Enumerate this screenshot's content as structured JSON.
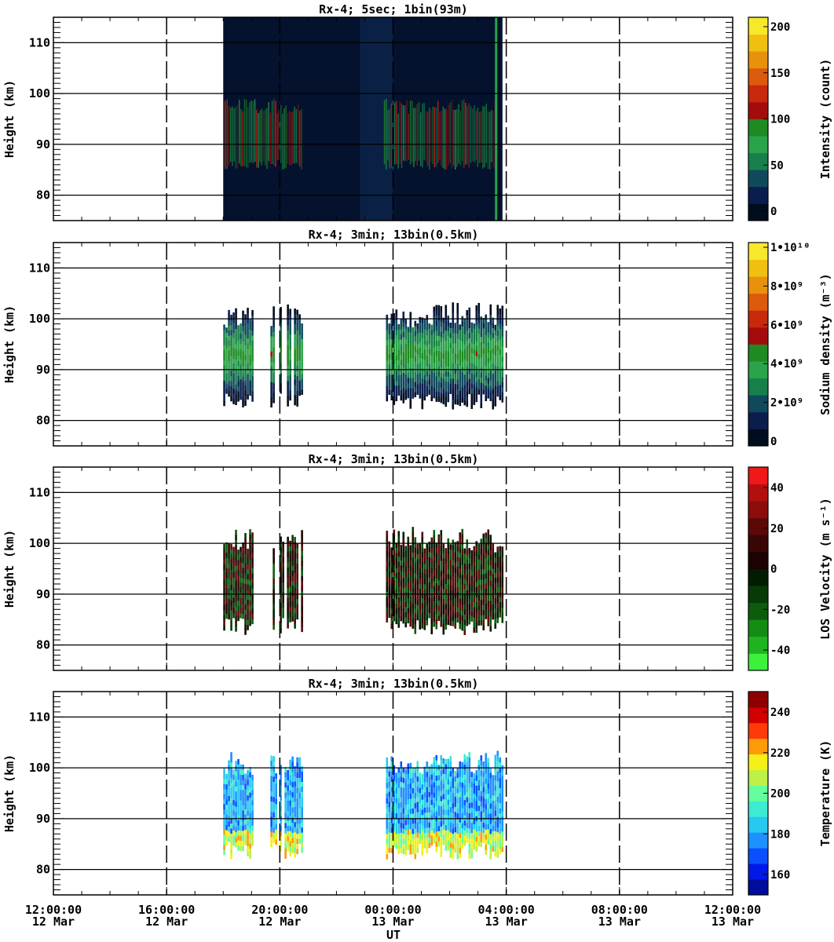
{
  "figure": {
    "panels": [
      {
        "title": "Rx-4;  5sec; 1bin(93m)",
        "ylabel": "Height (km)",
        "yticks": [
          "80",
          "90",
          "100",
          "110"
        ],
        "colorbar": {
          "label": "Intensity (count)",
          "ticks": [
            "0",
            "50",
            "100",
            "150",
            "200"
          ],
          "colors": [
            "#000d1f",
            "#0b1d4d",
            "#0e4a5c",
            "#17804a",
            "#2aa34a",
            "#1f8a22",
            "#a40c0c",
            "#c8280c",
            "#dc5a0c",
            "#e8920c",
            "#f0c010",
            "#f7e82a"
          ]
        },
        "data_blocks": [
          {
            "id": "intensity-main",
            "t0": "18:00",
            "t1": "02:45"
          },
          {
            "id": "intensity-fill",
            "t0": "02:45",
            "t1": "03:52"
          }
        ]
      },
      {
        "title": "Rx-4; 3min; 13bin(0.5km)",
        "ylabel": "Height (km)",
        "yticks": [
          "80",
          "90",
          "100",
          "110"
        ],
        "colorbar": {
          "label": "Sodium density (m⁻³)",
          "ticks": [
            "0",
            "2•10⁹",
            "4•10⁹",
            "6•10⁹",
            "8•10⁹",
            "1•10¹⁰"
          ],
          "colors": [
            "#000d1f",
            "#0b1d4d",
            "#0e4a5c",
            "#17804a",
            "#2aa34a",
            "#1f8a22",
            "#a40c0c",
            "#c8280c",
            "#dc5a0c",
            "#e8920c",
            "#f0c010",
            "#f7e82a"
          ]
        },
        "data_blocks": [
          {
            "id": "density-block-1",
            "t0": "18:00",
            "t1": "19:00"
          },
          {
            "id": "density-block-2",
            "t0": "19:40",
            "t1": "20:45"
          },
          {
            "id": "density-block-3",
            "t0": "23:45",
            "t1": "03:50"
          }
        ]
      },
      {
        "title": "Rx-4; 3min; 13bin(0.5km)",
        "ylabel": "Height (km)",
        "yticks": [
          "80",
          "90",
          "100",
          "110"
        ],
        "colorbar": {
          "label": "LOS Velocity (m s⁻¹)",
          "ticks": [
            "-40",
            "-20",
            "0",
            "20",
            "40"
          ],
          "colors": [
            "#3cf03c",
            "#1fb41f",
            "#148c14",
            "#0c5c0c",
            "#063a06",
            "#021c02",
            "#1c0202",
            "#3a0505",
            "#5c0808",
            "#8c0c0c",
            "#b40f0f",
            "#f01818"
          ]
        },
        "data_blocks": [
          {
            "id": "velocity-block-1",
            "t0": "18:00",
            "t1": "19:00"
          },
          {
            "id": "velocity-block-2",
            "t0": "19:40",
            "t1": "20:45"
          },
          {
            "id": "velocity-block-3",
            "t0": "23:45",
            "t1": "03:50"
          }
        ]
      },
      {
        "title": "Rx-4; 3min; 13bin(0.5km)",
        "ylabel": "Height (km)",
        "yticks": [
          "80",
          "90",
          "100",
          "110"
        ],
        "colorbar": {
          "label": "Temperature (K)",
          "ticks": [
            "160",
            "180",
            "200",
            "220",
            "240"
          ],
          "colors": [
            "#000c9c",
            "#0018e8",
            "#0a50ff",
            "#1e90ff",
            "#28c8f0",
            "#3cebd2",
            "#64ff9c",
            "#bef046",
            "#f5f016",
            "#ff9a0a",
            "#ff3a0a",
            "#d20000",
            "#8c0000"
          ]
        },
        "data_blocks": [
          {
            "id": "temperature-block-1",
            "t0": "18:00",
            "t1": "19:00"
          },
          {
            "id": "temperature-block-2",
            "t0": "19:40",
            "t1": "20:45"
          },
          {
            "id": "temperature-block-3",
            "t0": "23:45",
            "t1": "03:50"
          }
        ]
      }
    ],
    "xaxis": {
      "label": "UT",
      "ticks": [
        {
          "time": "12:00:00",
          "date": "12 Mar"
        },
        {
          "time": "16:00:00",
          "date": "12 Mar"
        },
        {
          "time": "20:00:00",
          "date": "12 Mar"
        },
        {
          "time": "00:00:00",
          "date": "13 Mar"
        },
        {
          "time": "04:00:00",
          "date": "13 Mar"
        },
        {
          "time": "08:00:00",
          "date": "13 Mar"
        },
        {
          "time": "12:00:00",
          "date": "13 Mar"
        }
      ]
    }
  },
  "chart_data": {
    "type": "heatmap",
    "title": "",
    "x_range": [
      "12 Mar 12:00:00",
      "13 Mar 12:00:00"
    ],
    "xlabel": "UT",
    "ylabel": "Height (km)",
    "ylim": [
      75,
      115
    ],
    "panels": [
      {
        "title": "Rx-4;  5sec; 1bin(93m)",
        "quantity": "Intensity (count)",
        "crange": [
          0,
          210
        ],
        "data_coverage": [
          "18:00",
          "03:52"
        ],
        "layer_km": [
          85,
          100
        ]
      },
      {
        "title": "Rx-4; 3min; 13bin(0.5km)",
        "quantity": "Sodium density (m^-3)",
        "crange": [
          0,
          10000000000.0
        ],
        "data_coverage": [
          [
            "18:00",
            "19:00"
          ],
          [
            "19:40",
            "20:45"
          ],
          [
            "23:45",
            "03:50"
          ]
        ],
        "layer_km": [
          81,
          103
        ]
      },
      {
        "title": "Rx-4; 3min; 13bin(0.5km)",
        "quantity": "LOS Velocity (m s^-1)",
        "crange": [
          -50,
          50
        ],
        "data_coverage": [
          [
            "18:00",
            "19:00"
          ],
          [
            "19:40",
            "20:45"
          ],
          [
            "23:45",
            "03:50"
          ]
        ],
        "layer_km": [
          81,
          103
        ]
      },
      {
        "title": "Rx-4; 3min; 13bin(0.5km)",
        "quantity": "Temperature (K)",
        "crange": [
          150,
          250
        ],
        "data_coverage": [
          [
            "18:00",
            "19:00"
          ],
          [
            "19:40",
            "20:45"
          ],
          [
            "23:45",
            "03:50"
          ]
        ],
        "layer_km": [
          81,
          103
        ]
      }
    ]
  }
}
